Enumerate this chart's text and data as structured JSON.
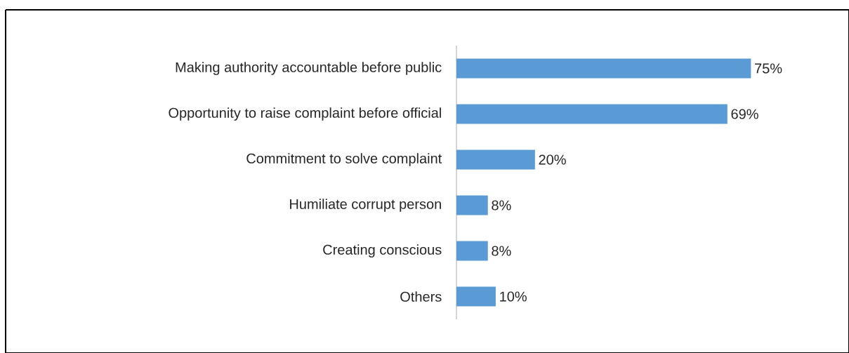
{
  "chart_data": {
    "type": "bar",
    "orientation": "horizontal",
    "categories": [
      "Making authority accountable before public",
      "Opportunity to raise complaint before official",
      "Commitment to solve complaint",
      "Humiliate corrupt person",
      "Creating conscious",
      "Others"
    ],
    "values": [
      75,
      69,
      20,
      8,
      8,
      10
    ],
    "value_labels": [
      "75%",
      "69%",
      "20%",
      "8%",
      "8%",
      "10%"
    ],
    "color": "#5b9bd5"
  }
}
